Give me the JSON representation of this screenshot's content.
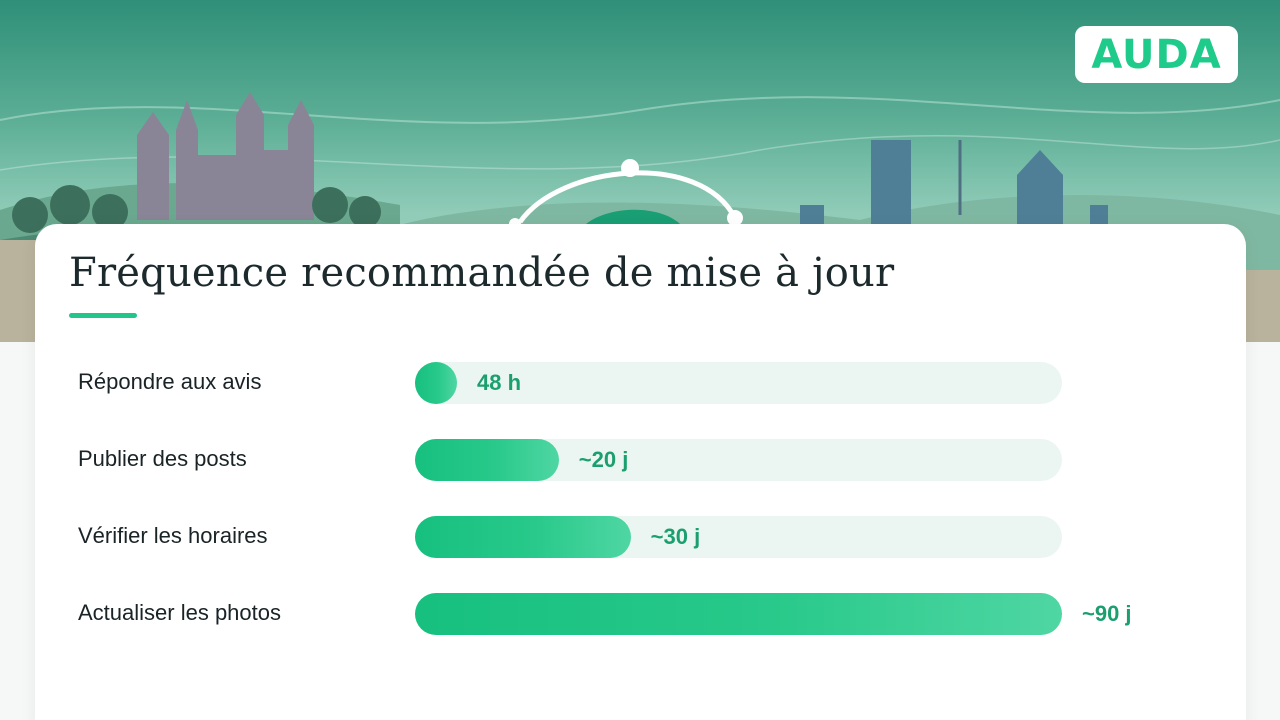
{
  "brand": {
    "logo_text": "AUDA",
    "accent": "#22c58a"
  },
  "chart_data": {
    "type": "bar",
    "orientation": "horizontal",
    "title": "Fréquence recommandée de mise à jour",
    "categories": [
      "Répondre aux avis",
      "Publier des posts",
      "Vérifier les horaires",
      "Actualiser les photos"
    ],
    "values": [
      2,
      20,
      30,
      90
    ],
    "value_unit": "jours",
    "value_labels": [
      "48 h",
      "~20 j",
      "~30 j",
      "~90 j"
    ],
    "xlim": [
      0,
      90
    ],
    "grid": false,
    "legend": "none"
  }
}
